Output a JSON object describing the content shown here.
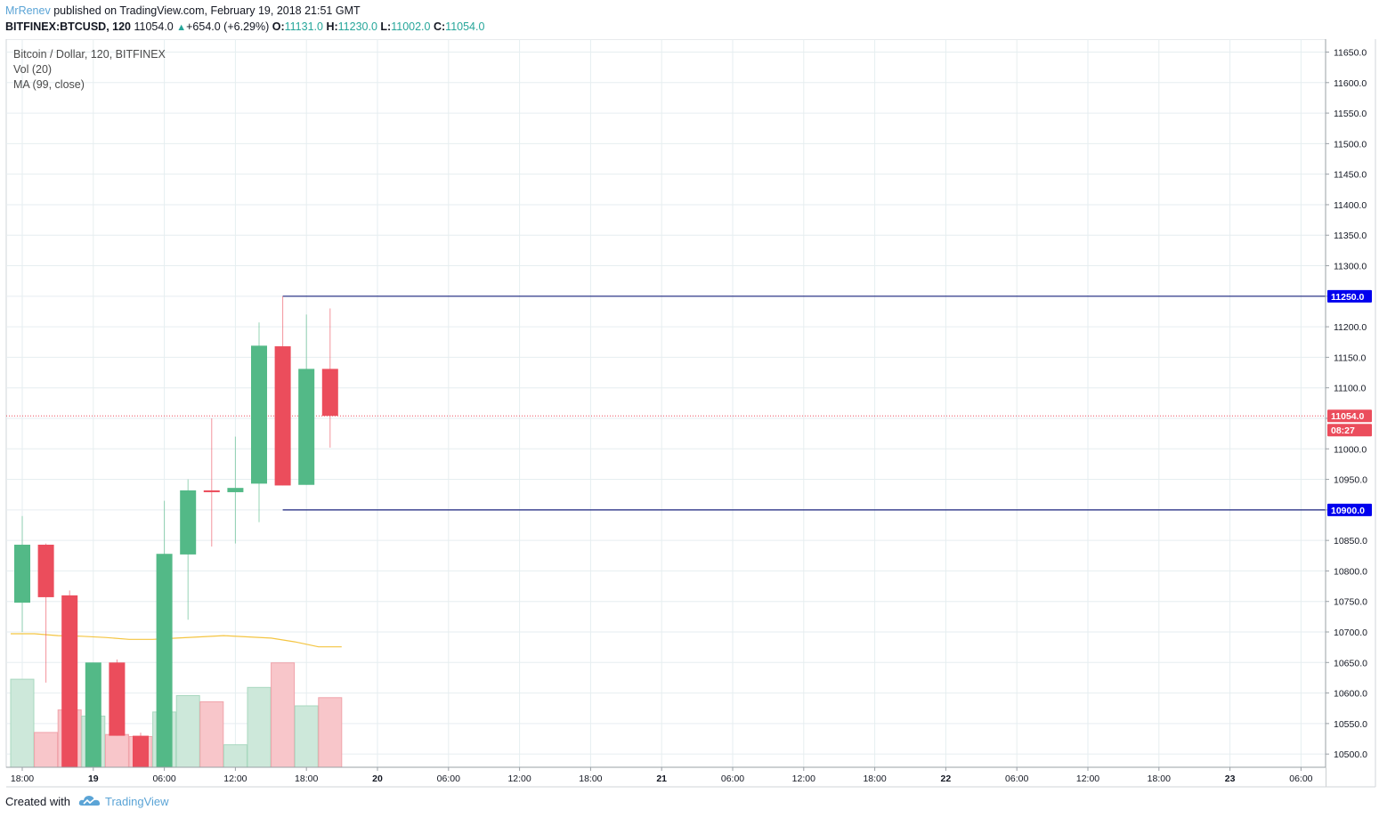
{
  "header": {
    "author": "MrRenev",
    "published_text": "published on TradingView.com, February 19, 2018 21:51 GMT",
    "symbol": "BITFINEX:BTCUSD, 120",
    "last": "11054.0",
    "change": "+654.0 (+6.29%)",
    "o_label": "O:",
    "o_value": "11131.0",
    "h_label": "H:",
    "h_value": "11230.0",
    "l_label": "L:",
    "l_value": "11002.0",
    "c_label": "C:",
    "c_value": "11054.0"
  },
  "footer": {
    "created_with": "Created with",
    "brand": "TradingView"
  },
  "colors": {
    "up": "#53b987",
    "down": "#eb4d5c",
    "vol_up": "#cde8da",
    "vol_down": "#f8c6ca",
    "ma": "#f4c542",
    "hline": "#1a237e",
    "tag_blue": "#0000ee",
    "price_line": "#eb4d5c",
    "grid": "#e6eef0"
  },
  "chart_data": {
    "type": "candlestick",
    "legend": [
      "Bitcoin / Dollar, 120, BITFINEX",
      "Vol (20)",
      "MA (99, close)"
    ],
    "y_range": [
      10475,
      11690
    ],
    "y_ticks": [
      "11650.0",
      "11600.0",
      "11550.0",
      "11500.0",
      "11450.0",
      "11400.0",
      "11350.0",
      "11300.0",
      "11250.0",
      "11200.0",
      "11150.0",
      "11100.0",
      "11050.0",
      "11000.0",
      "10950.0",
      "10900.0",
      "10850.0",
      "10800.0",
      "10750.0",
      "10700.0",
      "10650.0",
      "10600.0",
      "10550.0",
      "10500.0"
    ],
    "x_ticks": [
      {
        "label": "18:00",
        "i": 0
      },
      {
        "label": "19",
        "i": 3,
        "bold": true
      },
      {
        "label": "06:00",
        "i": 6
      },
      {
        "label": "12:00",
        "i": 9
      },
      {
        "label": "18:00",
        "i": 12
      },
      {
        "label": "20",
        "i": 15,
        "bold": true
      },
      {
        "label": "06:00",
        "i": 18
      },
      {
        "label": "12:00",
        "i": 21
      },
      {
        "label": "18:00",
        "i": 24
      },
      {
        "label": "21",
        "i": 27,
        "bold": true
      },
      {
        "label": "06:00",
        "i": 30
      },
      {
        "label": "12:00",
        "i": 33
      },
      {
        "label": "18:00",
        "i": 36
      },
      {
        "label": "22",
        "i": 39,
        "bold": true
      },
      {
        "label": "06:00",
        "i": 42
      },
      {
        "label": "12:00",
        "i": 45
      },
      {
        "label": "18:00",
        "i": 48
      },
      {
        "label": "23",
        "i": 51,
        "bold": true
      },
      {
        "label": "06:00",
        "i": 54
      }
    ],
    "candles": [
      {
        "o": 10748,
        "h": 10890,
        "l": 10700,
        "c": 10843
      },
      {
        "o": 10843,
        "h": 10845,
        "l": 10617,
        "c": 10757
      },
      {
        "o": 10760,
        "h": 10768,
        "l": 10475,
        "c": 10475
      },
      {
        "o": 10475,
        "h": 10650,
        "l": 10475,
        "c": 10650
      },
      {
        "o": 10650,
        "h": 10655,
        "l": 10530,
        "c": 10530
      },
      {
        "o": 10530,
        "h": 10535,
        "l": 10475,
        "c": 10475
      },
      {
        "o": 10475,
        "h": 10915,
        "l": 10475,
        "c": 10828
      },
      {
        "o": 10827,
        "h": 10950,
        "l": 10720,
        "c": 10932
      },
      {
        "o": 10932,
        "h": 11050,
        "l": 10840,
        "c": 10929
      },
      {
        "o": 10929,
        "h": 11020,
        "l": 10845,
        "c": 10936
      },
      {
        "o": 10943,
        "h": 11207,
        "l": 10880,
        "c": 11169
      },
      {
        "o": 11168,
        "h": 11250,
        "l": 10940,
        "c": 10940
      },
      {
        "o": 10941,
        "h": 11220,
        "l": 10941,
        "c": 11131
      },
      {
        "o": 11131,
        "h": 11230,
        "l": 11002,
        "c": 11054
      }
    ],
    "volume_axis_max": 100,
    "volumes": [
      43,
      17,
      28,
      25,
      16,
      15,
      27,
      35,
      32,
      11,
      39,
      51,
      30,
      34
    ],
    "ma": [
      10689,
      10689,
      10686,
      10685,
      10683,
      10680,
      10680,
      10682,
      10684,
      10686,
      10684,
      10682,
      10676,
      10668
    ],
    "hlines": [
      {
        "value": 11250,
        "label": "11250.0",
        "start_i": 11
      },
      {
        "value": 10900,
        "label": "10900.0",
        "start_i": 11
      }
    ],
    "last_price": {
      "value": 11054,
      "label": "11054.0",
      "timer": "08:27"
    }
  }
}
